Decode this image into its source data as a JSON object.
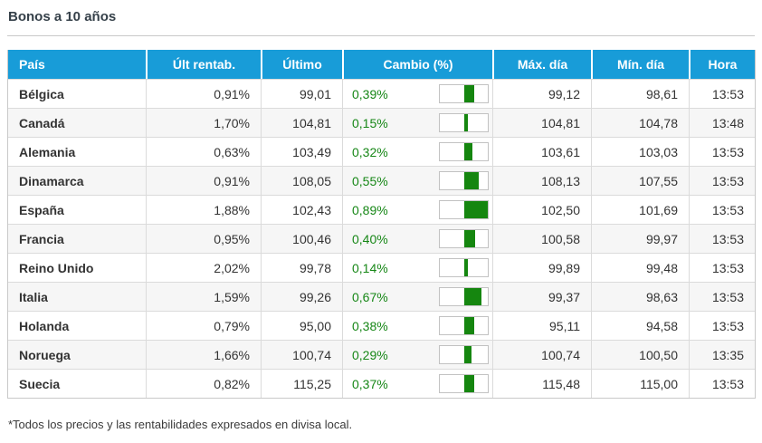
{
  "page": {
    "title": "Bonos a 10 años",
    "footnote": "*Todos los precios y las rentabilidades expresados en divisa local."
  },
  "colors": {
    "header_background": "#189cd8",
    "header_text": "#ffffff",
    "positive_change_text": "#178717",
    "change_bar_fill": "#15860f",
    "row_alt_background": "#f6f6f6",
    "body_text": "#333333"
  },
  "table": {
    "columns": [
      "País",
      "Últ rentab.",
      "Último",
      "Cambio (%)",
      "Máx. día",
      "Mín. día",
      "Hora"
    ],
    "rows": [
      {
        "pais": "Bélgica",
        "ult_rentab": "0,91%",
        "ultimo": "99,01",
        "cambio_pct": "0,39%",
        "cambio_value": 0.39,
        "max_dia": "99,12",
        "min_dia": "98,61",
        "hora": "13:53"
      },
      {
        "pais": "Canadá",
        "ult_rentab": "1,70%",
        "ultimo": "104,81",
        "cambio_pct": "0,15%",
        "cambio_value": 0.15,
        "max_dia": "104,81",
        "min_dia": "104,78",
        "hora": "13:48"
      },
      {
        "pais": "Alemania",
        "ult_rentab": "0,63%",
        "ultimo": "103,49",
        "cambio_pct": "0,32%",
        "cambio_value": 0.32,
        "max_dia": "103,61",
        "min_dia": "103,03",
        "hora": "13:53"
      },
      {
        "pais": "Dinamarca",
        "ult_rentab": "0,91%",
        "ultimo": "108,05",
        "cambio_pct": "0,55%",
        "cambio_value": 0.55,
        "max_dia": "108,13",
        "min_dia": "107,55",
        "hora": "13:53"
      },
      {
        "pais": "España",
        "ult_rentab": "1,88%",
        "ultimo": "102,43",
        "cambio_pct": "0,89%",
        "cambio_value": 0.89,
        "max_dia": "102,50",
        "min_dia": "101,69",
        "hora": "13:53"
      },
      {
        "pais": "Francia",
        "ult_rentab": "0,95%",
        "ultimo": "100,46",
        "cambio_pct": "0,40%",
        "cambio_value": 0.4,
        "max_dia": "100,58",
        "min_dia": "99,97",
        "hora": "13:53"
      },
      {
        "pais": "Reino Unido",
        "ult_rentab": "2,02%",
        "ultimo": "99,78",
        "cambio_pct": "0,14%",
        "cambio_value": 0.14,
        "max_dia": "99,89",
        "min_dia": "99,48",
        "hora": "13:53"
      },
      {
        "pais": "Italia",
        "ult_rentab": "1,59%",
        "ultimo": "99,26",
        "cambio_pct": "0,67%",
        "cambio_value": 0.67,
        "max_dia": "99,37",
        "min_dia": "98,63",
        "hora": "13:53"
      },
      {
        "pais": "Holanda",
        "ult_rentab": "0,79%",
        "ultimo": "95,00",
        "cambio_pct": "0,38%",
        "cambio_value": 0.38,
        "max_dia": "95,11",
        "min_dia": "94,58",
        "hora": "13:53"
      },
      {
        "pais": "Noruega",
        "ult_rentab": "1,66%",
        "ultimo": "100,74",
        "cambio_pct": "0,29%",
        "cambio_value": 0.29,
        "max_dia": "100,74",
        "min_dia": "100,50",
        "hora": "13:35"
      },
      {
        "pais": "Suecia",
        "ult_rentab": "0,82%",
        "ultimo": "115,25",
        "cambio_pct": "0,37%",
        "cambio_value": 0.37,
        "max_dia": "115,48",
        "min_dia": "115,00",
        "hora": "13:53"
      }
    ]
  },
  "chart_data": {
    "type": "bar",
    "title": "Cambio (%) por país (barras en columna Cambio)",
    "categories": [
      "Bélgica",
      "Canadá",
      "Alemania",
      "Dinamarca",
      "España",
      "Francia",
      "Reino Unido",
      "Italia",
      "Holanda",
      "Noruega",
      "Suecia"
    ],
    "values": [
      0.39,
      0.15,
      0.32,
      0.55,
      0.89,
      0.4,
      0.14,
      0.67,
      0.38,
      0.29,
      0.37
    ],
    "xlabel": "País",
    "ylabel": "Cambio (%)",
    "ylim": [
      0,
      1
    ]
  }
}
